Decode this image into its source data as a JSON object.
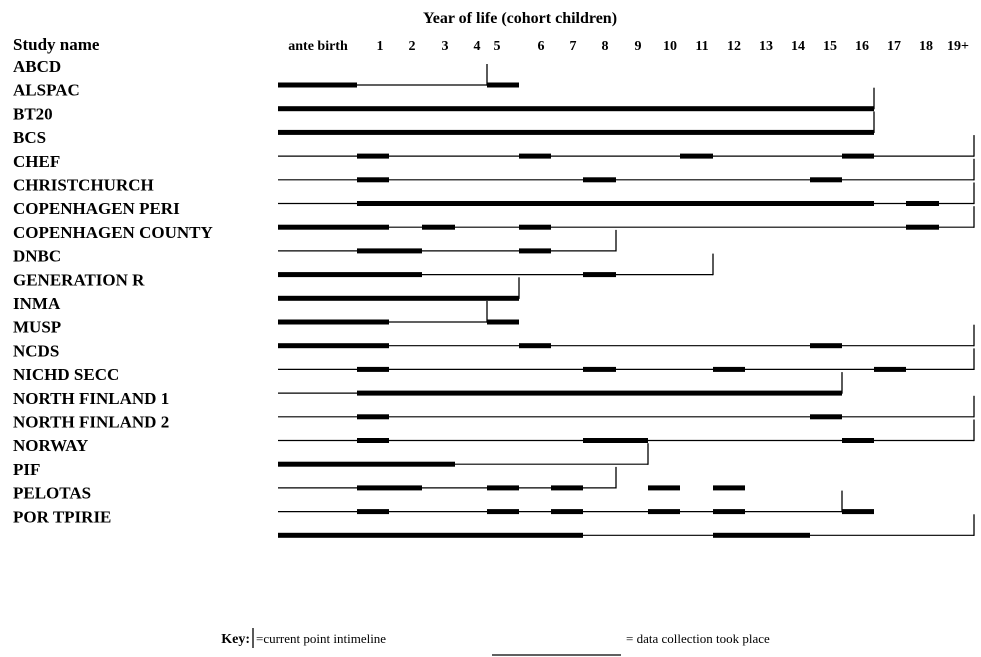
{
  "header": {
    "title": "Year of life (cohort children)",
    "study_column_label": "Study name"
  },
  "columns": [
    "ante birth",
    "1",
    "2",
    "3",
    "4",
    "5",
    "6",
    "7",
    "8",
    "9",
    "10",
    "11",
    "12",
    "13",
    "14",
    "15",
    "16",
    "17",
    "18",
    "19+"
  ],
  "studies": [
    {
      "name": "ABCD",
      "end": 5,
      "collections": [
        [
          0,
          1
        ],
        [
          5,
          6
        ]
      ]
    },
    {
      "name": "ALSPAC",
      "end": 17,
      "collections": [
        [
          0,
          17
        ]
      ]
    },
    {
      "name": "BT20",
      "end": 17,
      "collections": [
        [
          0,
          17
        ]
      ]
    },
    {
      "name": "BCS",
      "end": 22,
      "collections": [
        [
          1,
          2
        ],
        [
          6,
          7
        ],
        [
          11,
          12
        ],
        [
          16,
          17
        ]
      ]
    },
    {
      "name": "CHEF",
      "end": 22,
      "collections": [
        [
          1,
          2
        ],
        [
          8,
          9
        ],
        [
          15,
          16
        ]
      ]
    },
    {
      "name": "CHRISTCHURCH",
      "end": 22,
      "collections": [
        [
          1,
          17
        ],
        [
          18,
          19
        ]
      ]
    },
    {
      "name": "COPENHAGEN PERI",
      "end": 22,
      "collections": [
        [
          0,
          2
        ],
        [
          3,
          4
        ],
        [
          6,
          7
        ],
        [
          18,
          19
        ]
      ]
    },
    {
      "name": "COPENHAGEN COUNTY",
      "end": 9,
      "collections": [
        [
          1,
          3
        ],
        [
          6,
          7
        ]
      ]
    },
    {
      "name": "DNBC",
      "end": 12,
      "collections": [
        [
          0,
          3
        ],
        [
          8,
          9
        ]
      ]
    },
    {
      "name": "GENERATION R",
      "end": 6,
      "collections": [
        [
          0,
          6
        ]
      ]
    },
    {
      "name": "INMA",
      "end": 5,
      "collections": [
        [
          0,
          2
        ],
        [
          5,
          6
        ]
      ]
    },
    {
      "name": "MUSP",
      "end": 22,
      "collections": [
        [
          0,
          2
        ],
        [
          6,
          7
        ],
        [
          15,
          16
        ]
      ]
    },
    {
      "name": "NCDS",
      "end": 22,
      "collections": [
        [
          1,
          2
        ],
        [
          8,
          9
        ],
        [
          12,
          13
        ],
        [
          17,
          18
        ]
      ]
    },
    {
      "name": "NICHD SECC",
      "end": 16,
      "collections": [
        [
          1,
          16
        ]
      ]
    },
    {
      "name": "NORTH FINLAND 1",
      "end": 22,
      "collections": [
        [
          1,
          2
        ],
        [
          15,
          16
        ]
      ]
    },
    {
      "name": "NORTH FINLAND 2",
      "end": 22,
      "collections": [
        [
          1,
          2
        ],
        [
          8,
          10
        ],
        [
          16,
          17
        ]
      ]
    },
    {
      "name": "NORWAY",
      "end": 10,
      "collections": [
        [
          0,
          4
        ]
      ]
    },
    {
      "name": "PIF",
      "end": 9,
      "collections": [
        [
          1,
          3
        ],
        [
          5,
          6
        ],
        [
          7,
          8
        ],
        [
          10,
          11
        ],
        [
          12,
          13
        ]
      ]
    },
    {
      "name": "PELOTAS",
      "end": 16,
      "collections": [
        [
          1,
          2
        ],
        [
          5,
          6
        ],
        [
          7,
          8
        ],
        [
          10,
          11
        ],
        [
          12,
          13
        ],
        [
          16,
          17
        ]
      ]
    },
    {
      "name": "POR TPIRIE",
      "end": 22,
      "collections": [
        [
          0,
          8
        ],
        [
          12,
          15
        ]
      ]
    }
  ],
  "key": {
    "label": "Key:",
    "current_point_text": "=current point intimeline",
    "data_collection_text": "= data collection took place"
  }
}
